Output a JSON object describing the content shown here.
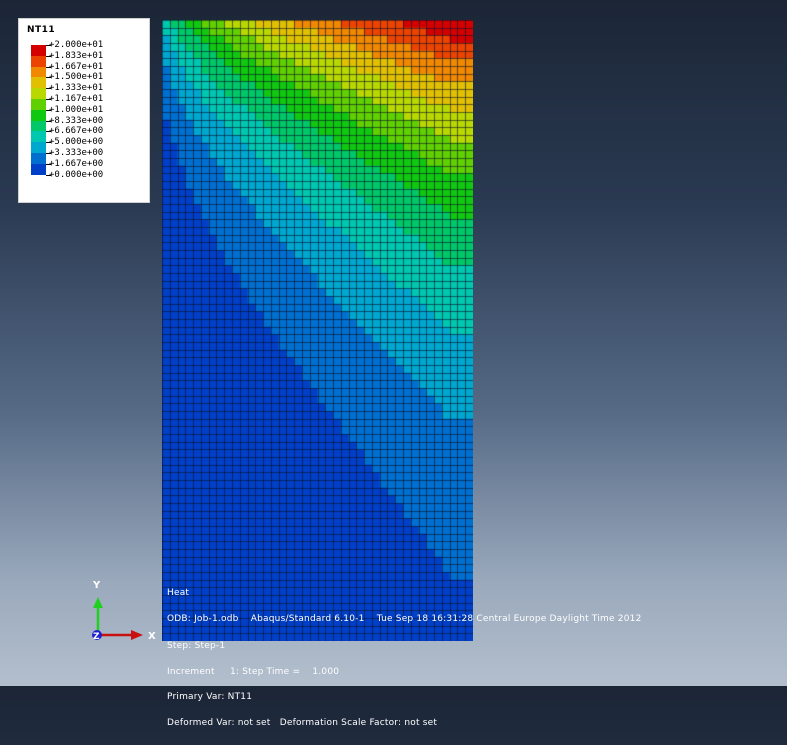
{
  "legend": {
    "title": "NT11",
    "entries": [
      {
        "label": "+2.000e+01",
        "color": "#d40000"
      },
      {
        "label": "+1.833e+01",
        "color": "#ec4400"
      },
      {
        "label": "+1.667e+01",
        "color": "#f08800"
      },
      {
        "label": "+1.500e+01",
        "color": "#e0c000"
      },
      {
        "label": "+1.333e+01",
        "color": "#b8d800"
      },
      {
        "label": "+1.167e+01",
        "color": "#60d000"
      },
      {
        "label": "+1.000e+01",
        "color": "#10c810"
      },
      {
        "label": "+8.333e+00",
        "color": "#00c868"
      },
      {
        "label": "+6.667e+00",
        "color": "#00c8b0"
      },
      {
        "label": "+5.000e+00",
        "color": "#00a8d0"
      },
      {
        "label": "+3.333e+00",
        "color": "#0070d0"
      },
      {
        "label": "+1.667e+00",
        "color": "#0040c8"
      },
      {
        "label": "+0.000e+00",
        "color": "#0018b8"
      }
    ],
    "bottom_color": "#0018b8"
  },
  "info": {
    "line1": "Heat",
    "line2": "ODB: Job-1.odb    Abaqus/Standard 6.10-1    Tue Sep 18 16:31:28 Central Europe Daylight Time 2012"
  },
  "step": {
    "line1": "Step: Step-1",
    "line2": "Increment     1: Step Time =    1.000",
    "line3": "Primary Var: NT11",
    "line4": "Deformed Var: not set   Deformation Scale Factor: not set"
  },
  "triad": {
    "y_label": "Y",
    "x_label": "X",
    "z_label": "Z",
    "y_color": "#20d020",
    "x_color": "#c81010",
    "z_color": "#2020d0"
  },
  "mesh": {
    "columns": 40,
    "rows": 81,
    "grid_line_color": "#0a1028"
  }
}
